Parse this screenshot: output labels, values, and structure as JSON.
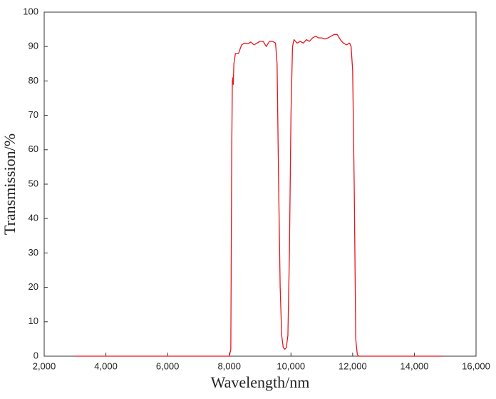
{
  "chart_data": {
    "type": "line",
    "x_label": "Wavelength/nm",
    "y_label": "Transmission/%",
    "xlim": [
      2000,
      16000
    ],
    "xticks": [
      {
        "value": 2000,
        "label": "2,000"
      },
      {
        "value": 4000,
        "label": "4,000"
      },
      {
        "value": 6000,
        "label": "6,000"
      },
      {
        "value": 8000,
        "label": "8,000"
      },
      {
        "value": 10000,
        "label": "10,000"
      },
      {
        "value": 12000,
        "label": "12,000"
      },
      {
        "value": 14000,
        "label": "14,000"
      },
      {
        "value": 16000,
        "label": "16,000"
      }
    ],
    "ylim": [
      0,
      100
    ],
    "yticks": [
      0,
      10,
      20,
      30,
      40,
      50,
      60,
      70,
      80,
      90,
      100
    ],
    "grid": false,
    "x": [
      3000,
      7000,
      8000,
      8050,
      8080,
      8100,
      8120,
      8130,
      8150,
      8200,
      8300,
      8400,
      8500,
      8600,
      8700,
      8800,
      8900,
      9000,
      9100,
      9200,
      9300,
      9400,
      9500,
      9550,
      9600,
      9650,
      9700,
      9750,
      9800,
      9850,
      9900,
      9950,
      10000,
      10050,
      10100,
      10200,
      10300,
      10400,
      10500,
      10600,
      10700,
      10800,
      10900,
      11000,
      11100,
      11200,
      11300,
      11400,
      11500,
      11600,
      11700,
      11800,
      11900,
      11950,
      12000,
      12050,
      12100,
      12150,
      12200,
      13000,
      14000,
      14900
    ],
    "series": [
      {
        "color": "#e8141c",
        "values": [
          0,
          0,
          0,
          2,
          60,
          80,
          81,
          79,
          85,
          88,
          88,
          90.5,
          91,
          90.8,
          91.3,
          90.5,
          91,
          91.5,
          91.5,
          90,
          91.5,
          91.5,
          91,
          85,
          50,
          20,
          6,
          2.5,
          2,
          2.5,
          6,
          30,
          70,
          90,
          92,
          91,
          91.5,
          91,
          92,
          91.5,
          92.5,
          93,
          92.5,
          92.5,
          92.2,
          92.5,
          93,
          93.5,
          93.5,
          92,
          91,
          90.5,
          91,
          90,
          83,
          50,
          5,
          0.5,
          0,
          0,
          0,
          0
        ]
      }
    ]
  }
}
